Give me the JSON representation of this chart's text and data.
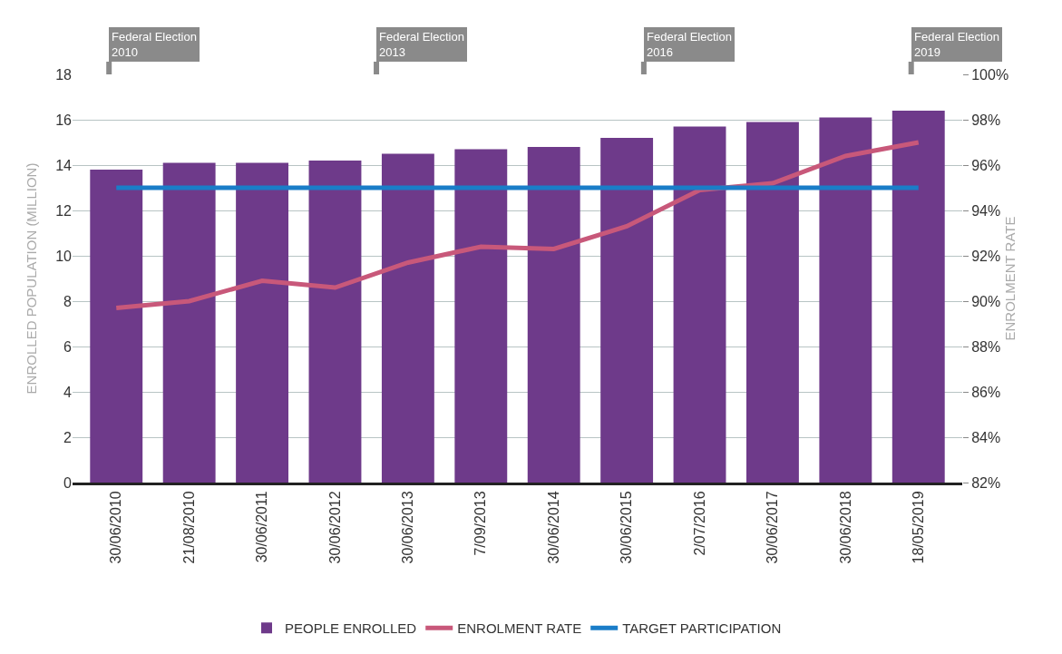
{
  "chart_data": {
    "type": "bar",
    "categories": [
      "30/06/2010",
      "21/08/2010",
      "30/06/2011",
      "30/06/2012",
      "30/06/2013",
      "7/09/2013",
      "30/06/2014",
      "30/06/2015",
      "2/07/2016",
      "30/06/2017",
      "30/06/2018",
      "18/05/2019"
    ],
    "series": [
      {
        "name": "PEOPLE ENROLLED",
        "type": "bar",
        "color": "#6e3a8a",
        "values": [
          13.8,
          14.1,
          14.1,
          14.2,
          14.5,
          14.7,
          14.8,
          15.2,
          15.7,
          15.9,
          16.1,
          16.4
        ]
      },
      {
        "name": "ENROLMENT RATE",
        "type": "line",
        "axis": "y2",
        "color": "#c8587a",
        "values": [
          89.7,
          90.0,
          90.9,
          90.6,
          91.7,
          92.4,
          92.3,
          93.3,
          94.9,
          95.2,
          96.4,
          97.0
        ]
      },
      {
        "name": "TARGET PARTICIPATION",
        "type": "line",
        "axis": "y2",
        "color": "#1a7dc8",
        "values": [
          95,
          95,
          95,
          95,
          95,
          95,
          95,
          95,
          95,
          95,
          95,
          95
        ]
      }
    ],
    "ylabel": "ENROLLED POPULATION (MILLION)",
    "y2label": "ENROLMENT RATE",
    "ylim": [
      0,
      18
    ],
    "yticks": [
      0,
      2,
      4,
      6,
      8,
      10,
      12,
      14,
      16,
      18
    ],
    "y2lim": [
      82,
      100
    ],
    "y2ticks": [
      {
        "value": 82,
        "label": "82%"
      },
      {
        "value": 84,
        "label": "84%"
      },
      {
        "value": 86,
        "label": "86%"
      },
      {
        "value": 88,
        "label": "88%"
      },
      {
        "value": 90,
        "label": "90%"
      },
      {
        "value": 92,
        "label": "92%"
      },
      {
        "value": 94,
        "label": "94%"
      },
      {
        "value": 96,
        "label": "96%"
      },
      {
        "value": 98,
        "label": "98%"
      },
      {
        "value": 100,
        "label": "100%"
      }
    ],
    "annotations": [
      "Federal Election\n2010",
      "Federal Election\n2013",
      "Federal Election\n2016",
      "Federal Election\n2019"
    ],
    "grid": "y",
    "legend": "bottom",
    "marker": "none",
    "line_style": "solid"
  }
}
